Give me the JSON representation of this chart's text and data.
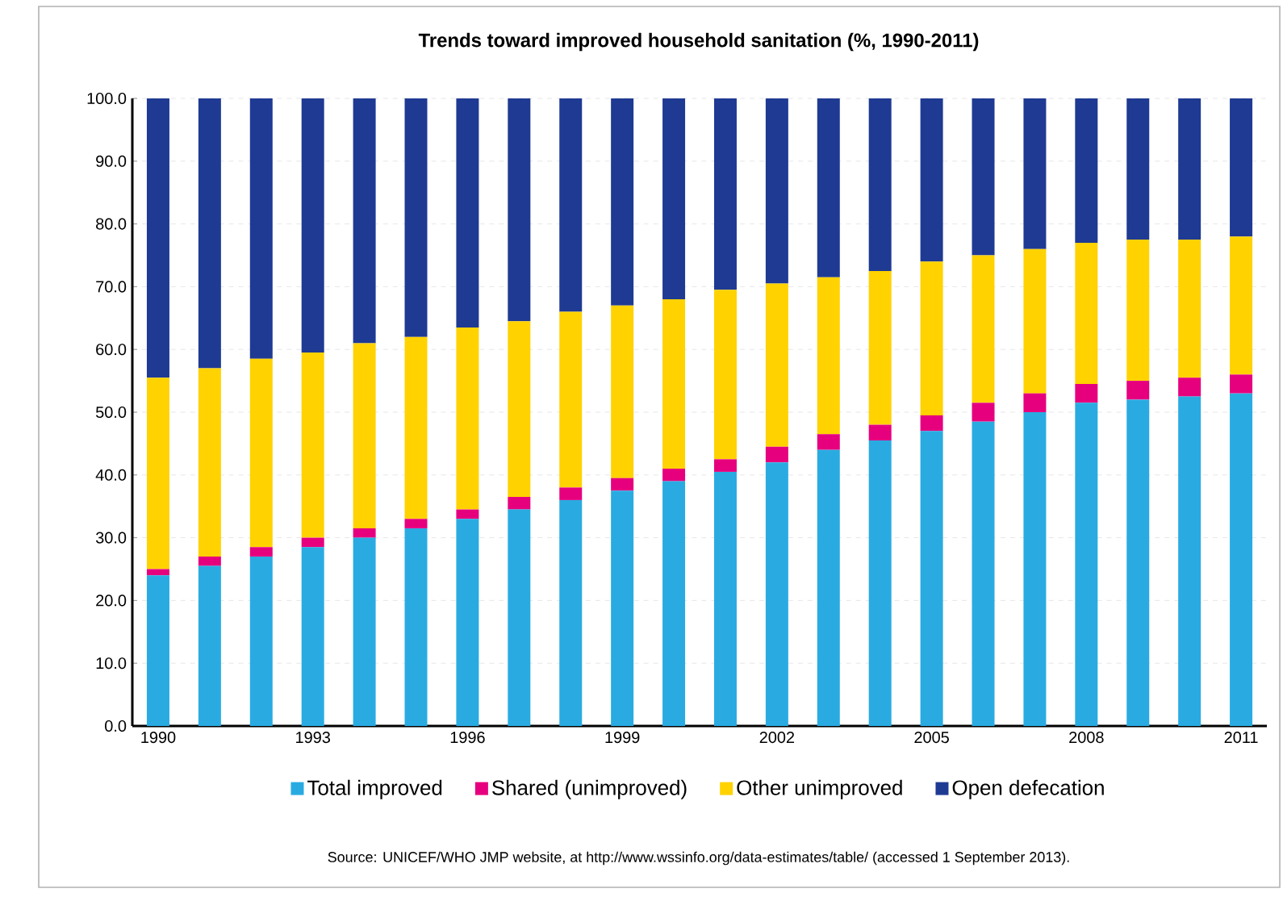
{
  "chart_data": {
    "type": "bar",
    "stacked": true,
    "title": "Trends toward improved household sanitation (%, 1990-2011)",
    "categories": [
      "1990",
      null,
      null,
      "1993",
      null,
      null,
      "1996",
      null,
      null,
      "1999",
      null,
      null,
      "2002",
      null,
      null,
      "2005",
      null,
      null,
      "2008",
      null,
      null,
      "2011"
    ],
    "series": [
      {
        "name": "Total improved",
        "color": "#29abe2",
        "values": [
          24,
          25.5,
          27,
          28.5,
          30,
          31.5,
          33,
          34.5,
          36,
          37.5,
          39,
          40.5,
          42,
          44,
          45.5,
          47,
          48.5,
          50,
          51.5,
          52,
          52.5,
          53
        ]
      },
      {
        "name": "Shared (unimproved)",
        "color": "#e6007e",
        "values": [
          1,
          1.5,
          1.5,
          1.5,
          1.5,
          1.5,
          1.5,
          2,
          2,
          2,
          2,
          2,
          2.5,
          2.5,
          2.5,
          2.5,
          3,
          3,
          3,
          3,
          3,
          3
        ]
      },
      {
        "name": "Other unimproved",
        "color": "#ffd200",
        "values": [
          30.5,
          30,
          30,
          29.5,
          29.5,
          29,
          29,
          28,
          28,
          27.5,
          27,
          27,
          26,
          25,
          24.5,
          24.5,
          23.5,
          23,
          22.5,
          22.5,
          22,
          22
        ]
      },
      {
        "name": "Open defecation",
        "color": "#1f3a93",
        "values": [
          44.5,
          43,
          41.5,
          40.5,
          39,
          38,
          36.5,
          35.5,
          34,
          33,
          32,
          30.5,
          29.5,
          28.5,
          27.5,
          26,
          25,
          24,
          23,
          22.5,
          22.5,
          22
        ]
      }
    ],
    "ylim": [
      0,
      100
    ],
    "yticks": [
      {
        "value": 0,
        "label": "0.0"
      },
      {
        "value": 10,
        "label": "10.0"
      },
      {
        "value": 20,
        "label": "20.0"
      },
      {
        "value": 30,
        "label": "30.0"
      },
      {
        "value": 40,
        "label": "40.0"
      },
      {
        "value": 50,
        "label": "50.0"
      },
      {
        "value": 60,
        "label": "60.0"
      },
      {
        "value": 70,
        "label": "70.0"
      },
      {
        "value": 80,
        "label": "80.0"
      },
      {
        "value": 90,
        "label": "90.0"
      },
      {
        "value": 100,
        "label": "100.0"
      }
    ],
    "grid": "y",
    "legend": "bottom",
    "annotations": [
      "Source:  UNICEF/WHO JMP website, at http://www.wssinfo.org/data-estimates/table/ (accessed 1 September 2013)."
    ]
  }
}
